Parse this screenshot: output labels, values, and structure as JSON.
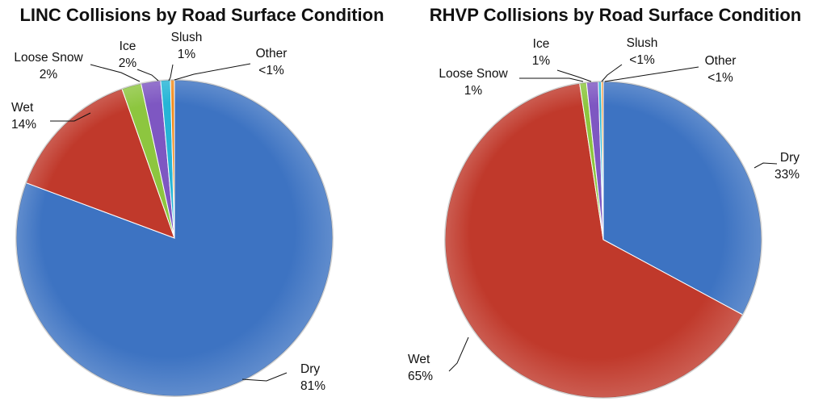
{
  "chart_data": [
    {
      "type": "pie",
      "title": "LINC Collisions by Road Surface Condition",
      "slices": [
        {
          "label": "Dry",
          "value": 81,
          "value_label": "81%",
          "color": "#3d73c2"
        },
        {
          "label": "Wet",
          "value": 14,
          "value_label": "14%",
          "color": "#c0392b"
        },
        {
          "label": "Loose Snow",
          "value": 2,
          "value_label": "2%",
          "color": "#8dc63f"
        },
        {
          "label": "Ice",
          "value": 2,
          "value_label": "2%",
          "color": "#7e57c2"
        },
        {
          "label": "Slush",
          "value": 1,
          "value_label": "1%",
          "color": "#26b5d6"
        },
        {
          "label": "Other",
          "value": 0.4,
          "value_label": "<1%",
          "color": "#f08c1e"
        }
      ]
    },
    {
      "type": "pie",
      "title": "RHVP Collisions by Road Surface Condition",
      "slices": [
        {
          "label": "Dry",
          "value": 33,
          "value_label": "33%",
          "color": "#3d73c2"
        },
        {
          "label": "Wet",
          "value": 65,
          "value_label": "65%",
          "color": "#c0392b"
        },
        {
          "label": "Loose Snow",
          "value": 0.7,
          "value_label": "1%",
          "color": "#8dc63f"
        },
        {
          "label": "Ice",
          "value": 1.2,
          "value_label": "1%",
          "color": "#7e57c2"
        },
        {
          "label": "Slush",
          "value": 0.3,
          "value_label": "<1%",
          "color": "#26b5d6"
        },
        {
          "label": "Other",
          "value": 0.2,
          "value_label": "<1%",
          "color": "#f08c1e"
        }
      ]
    }
  ]
}
